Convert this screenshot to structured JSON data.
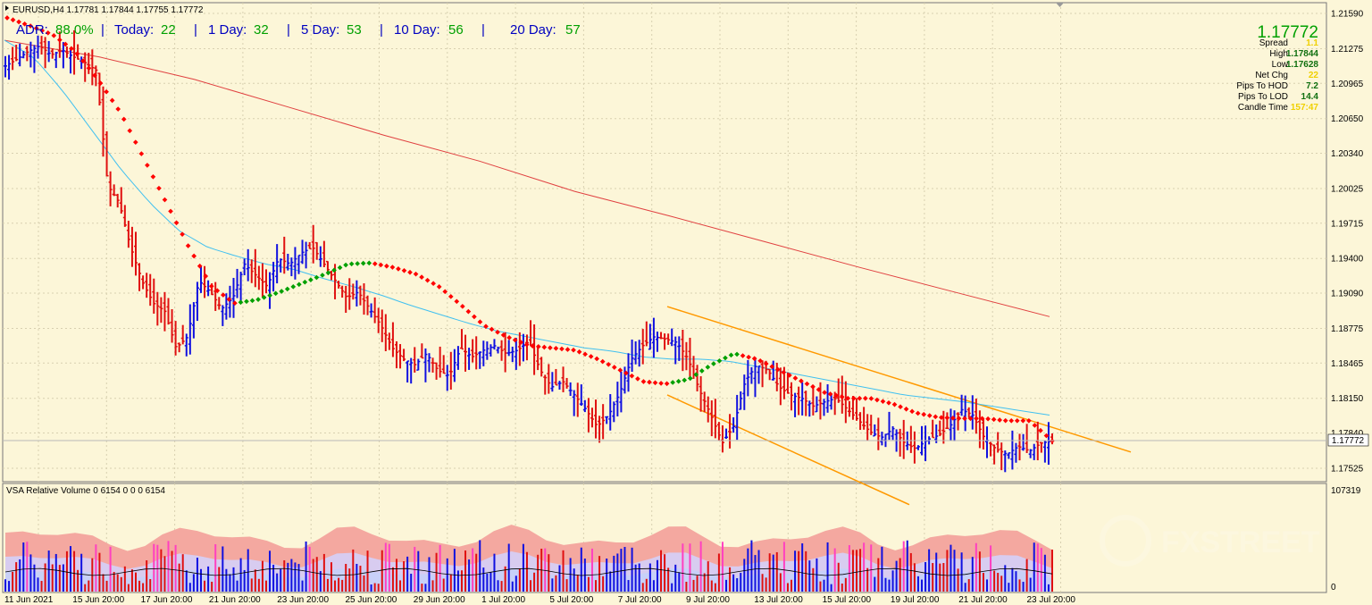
{
  "window": {
    "symbol_line": "EURUSD,H4  1.17781 1.17844 1.17755 1.17772",
    "sub_title": "VSA Relative Volume 0 6154 0 0 0 6154"
  },
  "adr_bar": {
    "adr_label": "ADR:",
    "adr_value": "88.0%",
    "sep": "|",
    "today_label": "Today:",
    "today_value": "22",
    "d1_label": "1 Day:",
    "d1_value": "32",
    "d5_label": "5 Day:",
    "d5_value": "53",
    "d10_label": "10 Day:",
    "d10_value": "56",
    "d20_label": "20 Day:",
    "d20_value": "57"
  },
  "info_panel": {
    "price": "1.17772",
    "rows": [
      {
        "label": "Spread",
        "value": "1.1"
      },
      {
        "label": "High",
        "value": "1.17844"
      },
      {
        "label": "Low",
        "value": "1.17628"
      },
      {
        "label": "Net Chg",
        "value": "22"
      },
      {
        "label": "Pips To HOD",
        "value": "7.2"
      },
      {
        "label": "Pips To LOD",
        "value": "14.4"
      },
      {
        "label": "Candle Time",
        "value": "157:47"
      }
    ]
  },
  "colors": {
    "background": "#fcf6d8",
    "grid": "#d8d0b0",
    "bull_bar": "#1010e0",
    "bear_bar": "#e01010",
    "ma_red": "#ff0000",
    "ma_green": "#00a000",
    "ema_cyan": "#40c0f0",
    "sma_slow": "#e04040",
    "channel": "#ff9900",
    "adr_text": "#0000c0",
    "adr_value": "#00a000",
    "price_big": "#00a000",
    "info_value": "#f0d000",
    "vol_band_top": "#f4a8a0",
    "vol_band_mid": "#d8ccf0",
    "vol_band_low": "#c8d0f8"
  },
  "chart_data": {
    "type": "ohlc",
    "symbol": "EURUSD",
    "timeframe": "H4",
    "y_ticks": [
      "1.21590",
      "1.21275",
      "1.20965",
      "1.20650",
      "1.20340",
      "1.20025",
      "1.19715",
      "1.19400",
      "1.19090",
      "1.18775",
      "1.18465",
      "1.18150",
      "1.17840",
      "1.17525"
    ],
    "ylim": [
      1.1735,
      1.217
    ],
    "current_price": "1.17772",
    "x_ticks": [
      "11 Jun 2021",
      "15 Jun 20:00",
      "17 Jun 20:00",
      "21 Jun 20:00",
      "23 Jun 20:00",
      "25 Jun 20:00",
      "29 Jun 20:00",
      "1 Jul 20:00",
      "5 Jul 20:00",
      "7 Jul 20:00",
      "9 Jul 20:00",
      "13 Jul 20:00",
      "15 Jul 20:00",
      "19 Jul 20:00",
      "21 Jul 20:00",
      "23 Jul 20:00"
    ],
    "close_path": [
      1.2112,
      1.2118,
      1.2125,
      1.213,
      1.2122,
      1.2126,
      1.212,
      1.2115,
      1.2108,
      1.2005,
      1.199,
      1.195,
      1.192,
      1.19,
      1.1893,
      1.186,
      1.187,
      1.192,
      1.191,
      1.1895,
      1.1905,
      1.1935,
      1.1925,
      1.1915,
      1.194,
      1.1935,
      1.1945,
      1.195,
      1.1935,
      1.192,
      1.1905,
      1.191,
      1.1895,
      1.188,
      1.186,
      1.185,
      1.1845,
      1.1855,
      1.184,
      1.1835,
      1.186,
      1.1852,
      1.1858,
      1.1862,
      1.1855,
      1.1858,
      1.1866,
      1.184,
      1.1825,
      1.183,
      1.1818,
      1.1805,
      1.179,
      1.18,
      1.182,
      1.185,
      1.1862,
      1.187,
      1.1868,
      1.1865,
      1.185,
      1.1822,
      1.18,
      1.1775,
      1.179,
      1.183,
      1.1845,
      1.184,
      1.1825,
      1.1818,
      1.1815,
      1.1808,
      1.1812,
      1.1815,
      1.1805,
      1.1795,
      1.1785,
      1.178,
      1.1788,
      1.1775,
      1.177,
      1.1778,
      1.1782,
      1.179,
      1.1805,
      1.18,
      1.178,
      1.177,
      1.1765,
      1.1772,
      1.1768,
      1.1775,
      1.1777
    ],
    "ma_fast_path": [
      1.2155,
      1.2148,
      1.214,
      1.2125,
      1.21,
      1.207,
      1.203,
      1.199,
      1.195,
      1.1915,
      1.19,
      1.1903,
      1.191,
      1.1918,
      1.1926,
      1.1935,
      1.1936,
      1.1932,
      1.1926,
      1.1915,
      1.1898,
      1.188,
      1.187,
      1.1862,
      1.186,
      1.1858,
      1.185,
      1.184,
      1.183,
      1.1828,
      1.1832,
      1.1845,
      1.1855,
      1.185,
      1.184,
      1.183,
      1.182,
      1.1815,
      1.1815,
      1.181,
      1.1802,
      1.1798,
      1.1797,
      1.1797,
      1.1795,
      1.1795,
      1.1777
    ],
    "ema_mid_path": [
      1.2135,
      1.212,
      1.209,
      1.2055,
      1.202,
      1.199,
      1.1965,
      1.195,
      1.1942,
      1.1935,
      1.193,
      1.1922,
      1.1915,
      1.1907,
      1.1898,
      1.189,
      1.1882,
      1.1875,
      1.187,
      1.1865,
      1.186,
      1.1857,
      1.1852,
      1.185,
      1.185,
      1.1848,
      1.1843,
      1.1838,
      1.1833,
      1.1828,
      1.1823,
      1.1818,
      1.1815,
      1.1812,
      1.1808,
      1.1804,
      1.18
    ],
    "sma_slow_path": [
      1.2135,
      1.212,
      1.21,
      1.2075,
      1.205,
      1.2027,
      1.2,
      1.1978,
      1.1955,
      1.1932,
      1.191,
      1.1888
    ],
    "channel_upper": [
      1.1897,
      1.1767
    ],
    "channel_lower": [
      1.1818,
      1.172
    ],
    "volume_ylim": [
      0,
      107319
    ],
    "volume_top_label": "107319",
    "volume_zero_label": "0"
  }
}
